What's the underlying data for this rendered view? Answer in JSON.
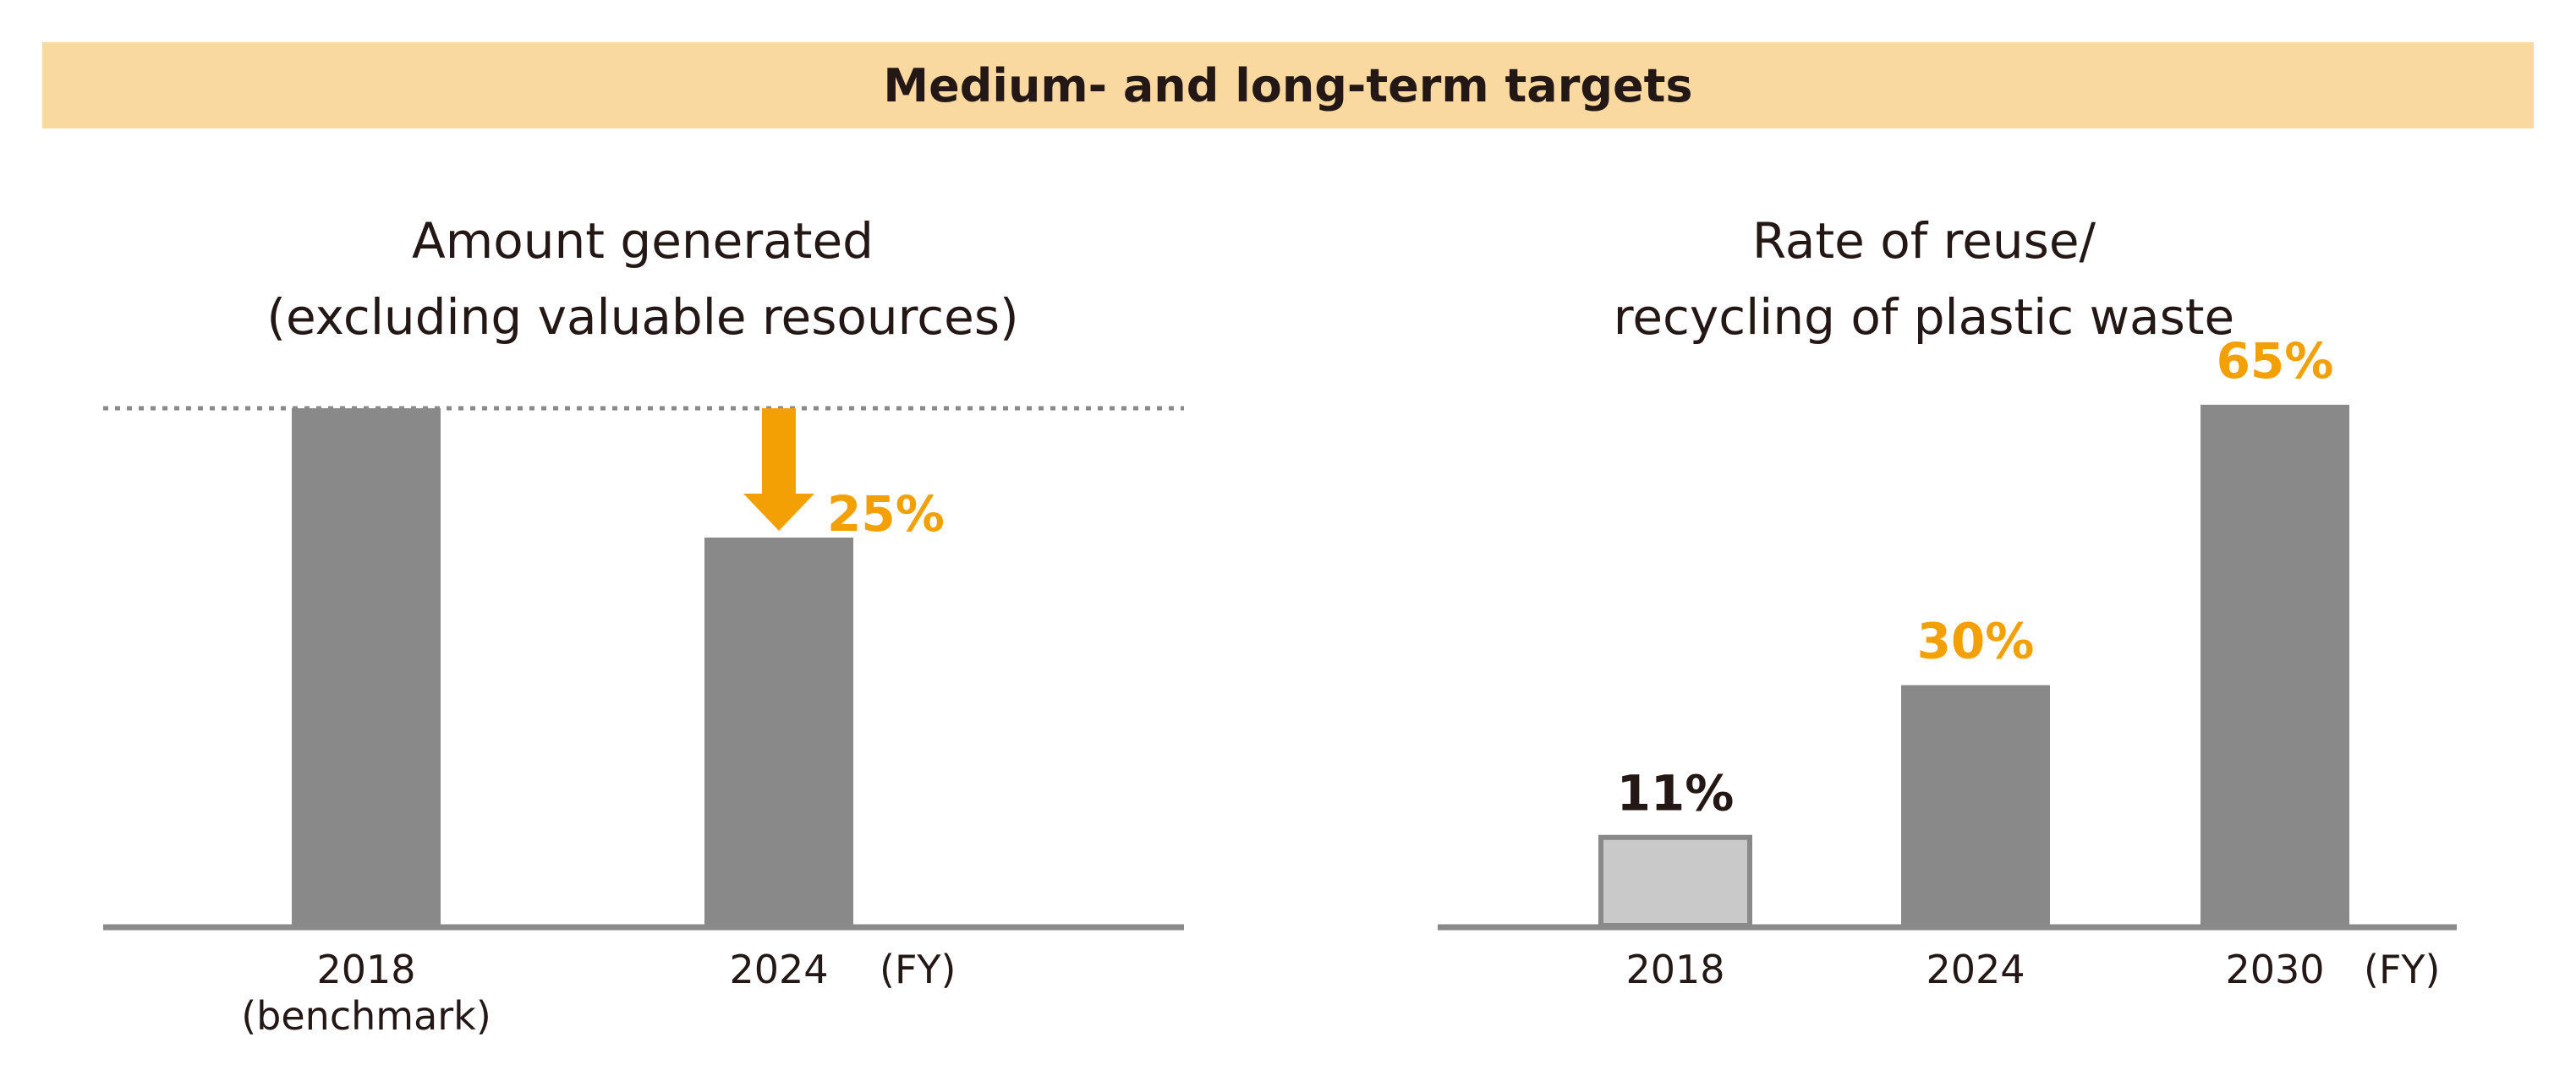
{
  "banner": {
    "title": "Medium- and long-term targets"
  },
  "colors": {
    "bar": "#898989",
    "bar_light": "#c9c9c9",
    "accent": "#f2a003",
    "banner_bg": "#fad9a1",
    "text": "#231815"
  },
  "chart_data": [
    {
      "type": "bar",
      "title_lines": [
        "Amount generated",
        "(excluding valuable resources)"
      ],
      "categories": [
        "2018",
        "2024"
      ],
      "category_sublabels": [
        "(benchmark)",
        ""
      ],
      "values": [
        100,
        75
      ],
      "ylim": [
        0,
        100
      ],
      "unit": "(FY)",
      "reduction_label": "25%",
      "benchmark_reference_line": true
    },
    {
      "type": "bar",
      "title_lines": [
        "Rate of reuse/",
        "recycling of plastic waste"
      ],
      "categories": [
        "2018",
        "2024",
        "2030"
      ],
      "values": [
        11,
        30,
        65
      ],
      "value_labels": [
        "11%",
        "30%",
        "65%"
      ],
      "ylim": [
        0,
        73
      ],
      "unit": "(FY)"
    }
  ]
}
